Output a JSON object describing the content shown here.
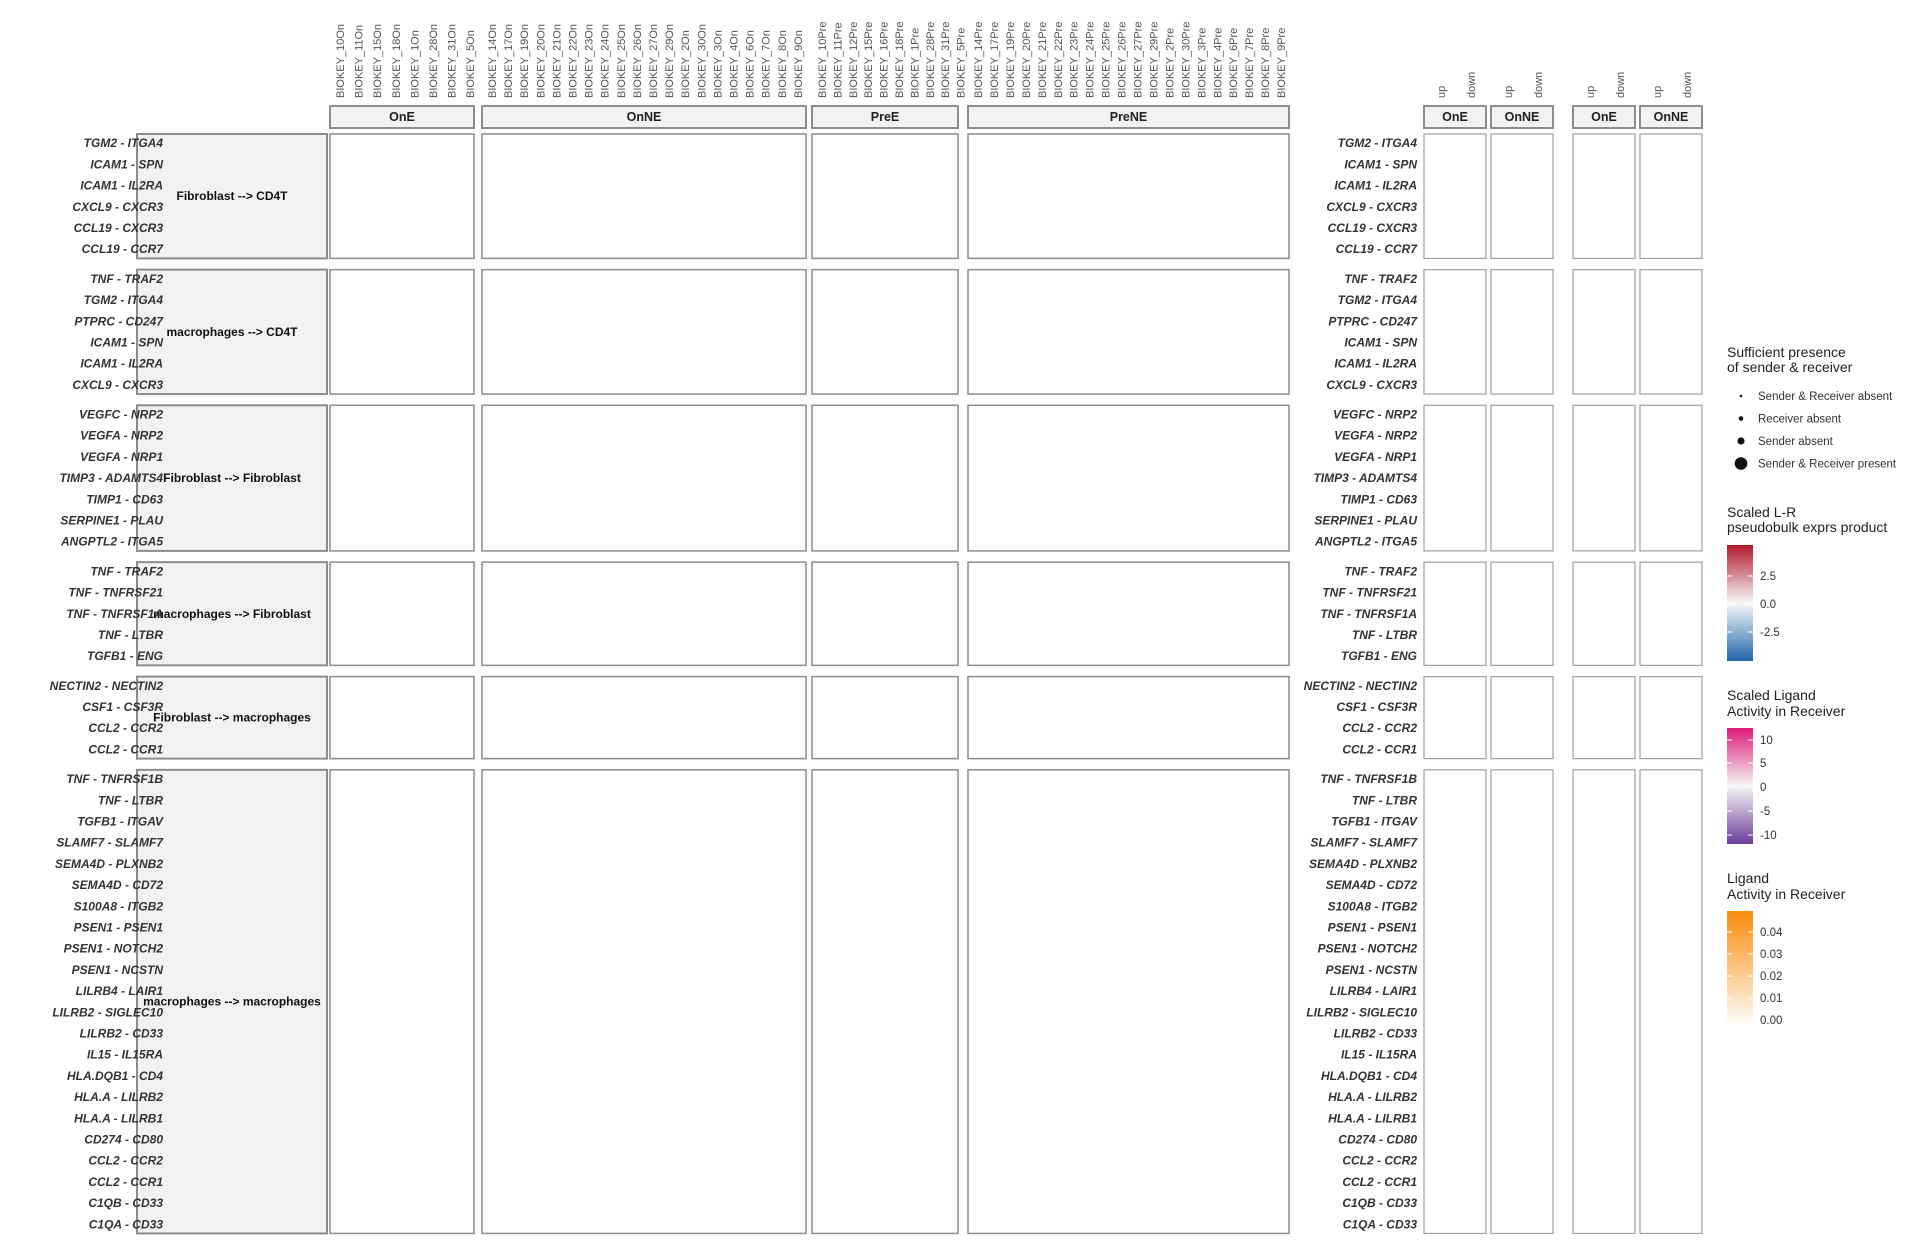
{
  "panels": [
    {
      "label": "OnE",
      "samples": [
        "BIOKEY_10On",
        "BIOKEY_11On",
        "BIOKEY_15On",
        "BIOKEY_18On",
        "BIOKEY_1On",
        "BIOKEY_28On",
        "BIOKEY_31On",
        "BIOKEY_5On"
      ]
    },
    {
      "label": "OnNE",
      "samples": [
        "BIOKEY_14On",
        "BIOKEY_17On",
        "BIOKEY_19On",
        "BIOKEY_20On",
        "BIOKEY_21On",
        "BIOKEY_22On",
        "BIOKEY_23On",
        "BIOKEY_24On",
        "BIOKEY_25On",
        "BIOKEY_26On",
        "BIOKEY_27On",
        "BIOKEY_29On",
        "BIOKEY_2On",
        "BIOKEY_30On",
        "BIOKEY_3On",
        "BIOKEY_4On",
        "BIOKEY_6On",
        "BIOKEY_7On",
        "BIOKEY_8On",
        "BIOKEY_9On"
      ]
    },
    {
      "label": "PreE",
      "samples": [
        "BIOKEY_10Pre",
        "BIOKEY_11Pre",
        "BIOKEY_12Pre",
        "BIOKEY_15Pre",
        "BIOKEY_16Pre",
        "BIOKEY_18Pre",
        "BIOKEY_1Pre",
        "BIOKEY_28Pre",
        "BIOKEY_31Pre",
        "BIOKEY_5Pre"
      ]
    },
    {
      "label": "PreNE",
      "samples": [
        "BIOKEY_14Pre",
        "BIOKEY_17Pre",
        "BIOKEY_19Pre",
        "BIOKEY_20Pre",
        "BIOKEY_21Pre",
        "BIOKEY_22Pre",
        "BIOKEY_23Pre",
        "BIOKEY_24Pre",
        "BIOKEY_25Pre",
        "BIOKEY_26Pre",
        "BIOKEY_27Pre",
        "BIOKEY_29Pre",
        "BIOKEY_2Pre",
        "BIOKEY_30Pre",
        "BIOKEY_3Pre",
        "BIOKEY_4Pre",
        "BIOKEY_6Pre",
        "BIOKEY_7Pre",
        "BIOKEY_8Pre",
        "BIOKEY_9Pre"
      ]
    }
  ],
  "groups": [
    {
      "label": "Fibroblast --> CD4T",
      "pairs": [
        "TGM2 - ITGA4",
        "ICAM1 - SPN",
        "ICAM1 - IL2RA",
        "CXCL9 - CXCR3",
        "CCL19 - CXCR3",
        "CCL19 - CCR7"
      ]
    },
    {
      "label": "macrophages --> CD4T",
      "pairs": [
        "TNF - TRAF2",
        "TGM2 - ITGA4",
        "PTPRC - CD247",
        "ICAM1 - SPN",
        "ICAM1 - IL2RA",
        "CXCL9 - CXCR3"
      ]
    },
    {
      "label": "Fibroblast --> Fibroblast",
      "pairs": [
        "VEGFC - NRP2",
        "VEGFA - NRP2",
        "VEGFA - NRP1",
        "TIMP3 - ADAMTS4",
        "TIMP1 - CD63",
        "SERPINE1 - PLAU",
        "ANGPTL2 - ITGA5"
      ]
    },
    {
      "label": "macrophages --> Fibroblast",
      "pairs": [
        "TNF - TRAF2",
        "TNF - TNFRSF21",
        "TNF - TNFRSF1A",
        "TNF - LTBR",
        "TGFB1 - ENG"
      ]
    },
    {
      "label": "Fibroblast --> macrophages",
      "pairs": [
        "NECTIN2 - NECTIN2",
        "CSF1 - CSF3R",
        "CCL2 - CCR2",
        "CCL2 - CCR1"
      ]
    },
    {
      "label": "macrophages --> macrophages",
      "pairs": [
        "TNF - TNFRSF1B",
        "TNF - LTBR",
        "TGFB1 - ITGAV",
        "SLAMF7 - SLAMF7",
        "SEMA4D - PLXNB2",
        "SEMA4D - CD72",
        "S100A8 - ITGB2",
        "PSEN1 - PSEN1",
        "PSEN1 - NOTCH2",
        "PSEN1 - NCSTN",
        "LILRB4 - LAIR1",
        "LILRB2 - SIGLEC10",
        "LILRB2 - CD33",
        "IL15 - IL15RA",
        "HLA.DQB1 - CD4",
        "HLA.A - LILRB2",
        "HLA.A - LILRB1",
        "CD274 - CD80",
        "CCL2 - CCR2",
        "CCL2 - CCR1",
        "C1QB - CD33",
        "C1QA - CD33"
      ]
    }
  ],
  "heat_panels": [
    {
      "label": "OnE",
      "columns": [
        "up",
        "down"
      ]
    },
    {
      "label": "OnNE",
      "columns": [
        "up",
        "down"
      ]
    },
    {
      "label": "OnE",
      "columns": [
        "up",
        "down"
      ]
    },
    {
      "label": "OnNE",
      "columns": [
        "up",
        "down"
      ]
    }
  ],
  "legends": {
    "presence": {
      "title": [
        "Sufficient presence",
        "of sender & receiver"
      ],
      "items": [
        "Sender & Receiver absent",
        "Receiver absent",
        "Sender absent",
        "Sender & Receiver present"
      ]
    },
    "scaled_lr": {
      "title": [
        "Scaled L-R",
        "pseudobulk exprs product"
      ],
      "ticks": [
        "2.5",
        "0.0",
        "-2.5"
      ]
    },
    "ligand_scaled": {
      "title": [
        "Scaled Ligand",
        "Activity in Receiver"
      ],
      "ticks": [
        "10",
        "5",
        "0",
        "-5",
        "-10"
      ]
    },
    "ligand": {
      "title": [
        "Ligand",
        "Activity in Receiver"
      ],
      "ticks": [
        "0.04",
        "0.03",
        "0.02",
        "0.01",
        "0.00"
      ]
    }
  },
  "colors": {
    "high": "#b2182b",
    "mid": "#f7f7f7",
    "low": "#2166ac",
    "pink": "#dd1c77",
    "orange": "#f98c0a"
  }
}
